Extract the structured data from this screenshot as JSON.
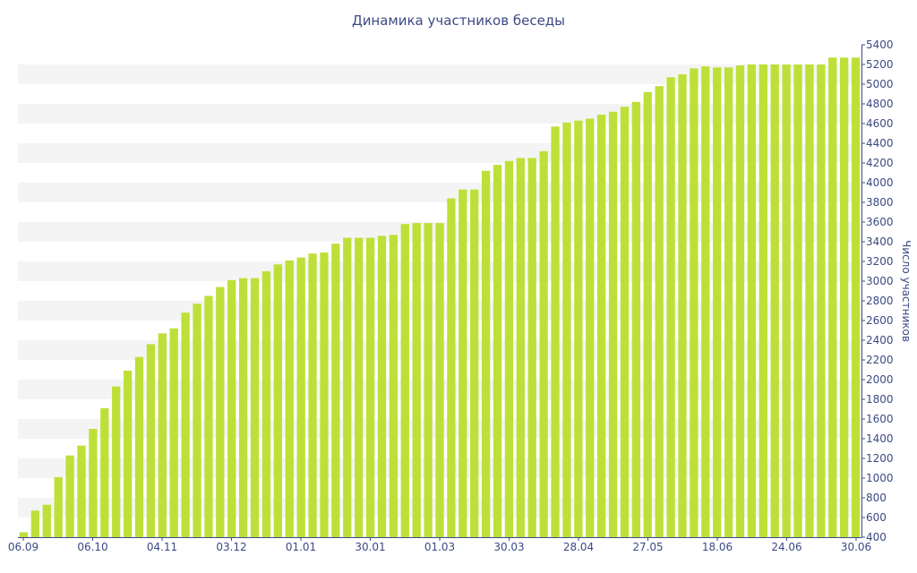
{
  "chart_data": {
    "type": "bar",
    "title": "Динамика участников беседы",
    "ylabel": "Число участников",
    "xlabel": "",
    "ylim": [
      400,
      5400
    ],
    "y_ticks": [
      400,
      600,
      800,
      1000,
      1200,
      1400,
      1600,
      1800,
      2000,
      2200,
      2400,
      2600,
      2800,
      3000,
      3200,
      3400,
      3600,
      3800,
      4000,
      4200,
      4400,
      4600,
      4800,
      5000,
      5200,
      5400
    ],
    "x_tick_labels": [
      "06.09",
      "06.10",
      "04.11",
      "03.12",
      "01.01",
      "30.01",
      "01.03",
      "30.03",
      "28.04",
      "27.05",
      "18.06",
      "24.06",
      "30.06"
    ],
    "grid": "alternating horizontal bands",
    "legend": "none",
    "bar_color": "#bde038",
    "band_color": "#f4f4f4",
    "values": [
      450,
      670,
      730,
      1010,
      1230,
      1330,
      1500,
      1710,
      1930,
      2090,
      2230,
      2360,
      2470,
      2520,
      2680,
      2770,
      2850,
      2940,
      3010,
      3030,
      3030,
      3100,
      3170,
      3210,
      3240,
      3280,
      3290,
      3380,
      3440,
      3440,
      3440,
      3460,
      3470,
      3580,
      3590,
      3590,
      3590,
      3840,
      3930,
      3930,
      4120,
      4180,
      4220,
      4250,
      4250,
      4320,
      4570,
      4610,
      4630,
      4650,
      4690,
      4720,
      4770,
      4820,
      4920,
      4980,
      5070,
      5100,
      5160,
      5180,
      5170,
      5170,
      5190,
      5200,
      5200,
      5200,
      5200,
      5200,
      5200,
      5200,
      5270,
      5270,
      5270
    ]
  }
}
